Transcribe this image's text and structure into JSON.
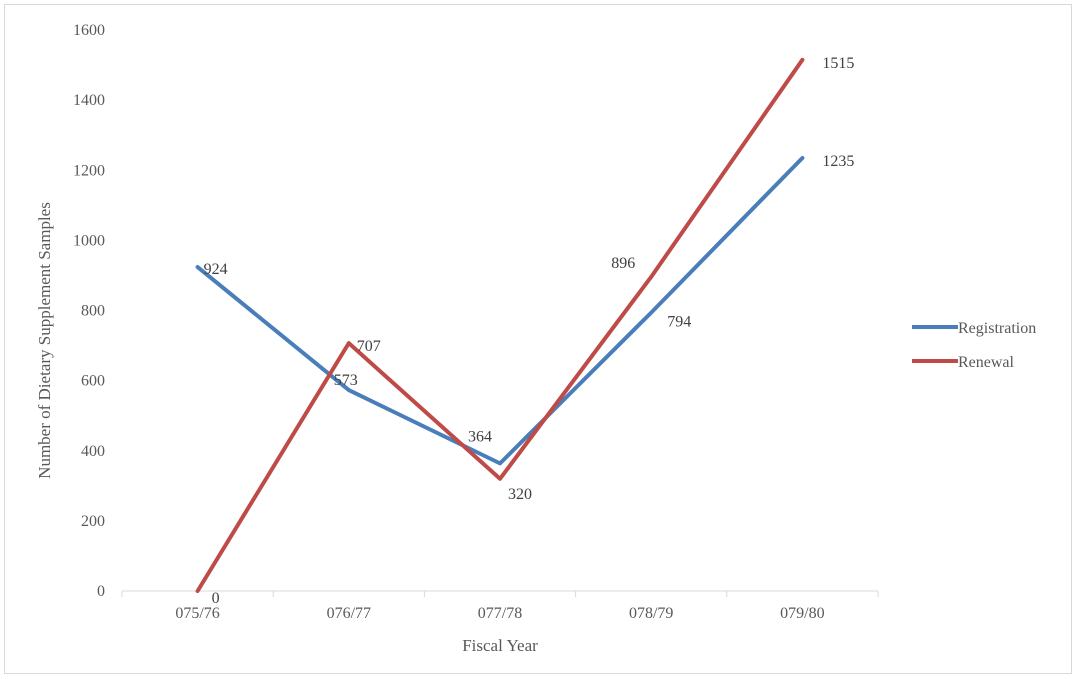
{
  "chart_data": {
    "type": "line",
    "title": "",
    "xlabel": "Fiscal Year",
    "ylabel": "Number of Dietary Supplement Samples",
    "categories": [
      "075/76",
      "076/77",
      "077/78",
      "078/79",
      "079/80"
    ],
    "ylim": [
      0,
      1600
    ],
    "yticks": [
      0,
      200,
      400,
      600,
      800,
      1000,
      1200,
      1400,
      1600
    ],
    "yticklabels": [
      "0",
      "200",
      "400",
      "600",
      "800",
      "1000",
      "1200",
      "1400",
      "1600"
    ],
    "grid": false,
    "legend": "right",
    "series": [
      {
        "name": "Registration",
        "color": "#4a7ebb",
        "values": [
          924,
          573,
          364,
          794,
          1235
        ],
        "labels": [
          "924",
          "573",
          "364",
          "794",
          "1235"
        ]
      },
      {
        "name": "Renewal",
        "color": "#be4b48",
        "values": [
          0,
          707,
          320,
          896,
          1515
        ],
        "labels": [
          "0",
          "707",
          "320",
          "896",
          "1515"
        ]
      }
    ]
  }
}
